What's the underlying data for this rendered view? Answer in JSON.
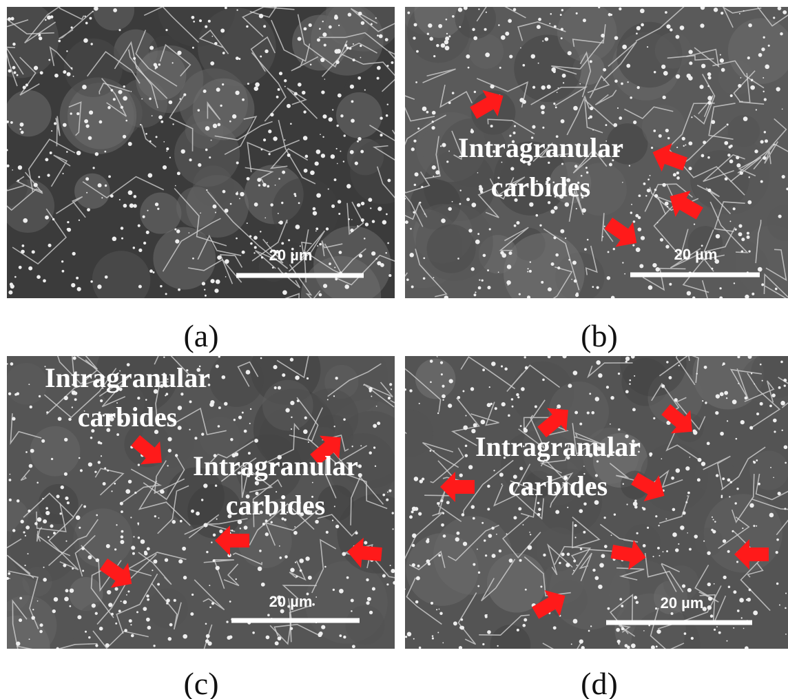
{
  "panels": [
    {
      "label": "(a)",
      "scale_bar": "20 µm"
    },
    {
      "label": "(b)",
      "scale_bar": "20 µm",
      "annotations": [
        [
          "Intragranular",
          "carbides"
        ]
      ]
    },
    {
      "label": "(c)",
      "scale_bar": "20 µm",
      "annotations": [
        [
          "Intragranular",
          "carbides"
        ],
        [
          "Intragranular",
          "carbides"
        ]
      ]
    },
    {
      "label": "(d)",
      "scale_bar": "20 µm",
      "annotations": [
        [
          "Intragranular",
          "carbides"
        ]
      ]
    }
  ]
}
